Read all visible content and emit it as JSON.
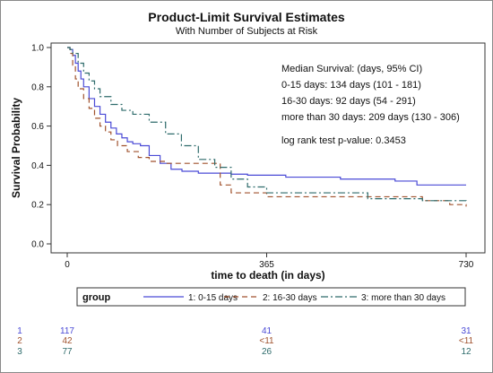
{
  "title": "Product-Limit Survival Estimates",
  "subtitle": "With Number of Subjects at Risk",
  "annotations": [
    "Median Survival: (days, 95% CI)",
    "0-15 days: 134 days (101 - 181)",
    "16-30 days: 92 days (54 - 291)",
    "more than 30 days: 209 days (130 - 306)",
    "log rank test p-value: 0.3453"
  ],
  "legend": {
    "title": "group",
    "items": [
      "1: 0-15 days",
      "2: 16-30 days",
      "3: more than 30 days"
    ]
  },
  "colors": {
    "series1": "#4a4ad6",
    "series2": "#a0522d",
    "series3": "#2e6b6b"
  },
  "chart_data": {
    "type": "line",
    "xlabel": "time to death (in days)",
    "ylabel": "Survival Probability",
    "xlim": [
      0,
      730
    ],
    "ylim": [
      0,
      1.0
    ],
    "xticks": [
      "0",
      "365",
      "730"
    ],
    "yticks": [
      "0.0",
      "0.2",
      "0.4",
      "0.6",
      "0.8",
      "1.0"
    ],
    "series": [
      {
        "name": "1: 0-15 days",
        "style": "solid",
        "x": [
          0,
          5,
          10,
          15,
          20,
          25,
          30,
          40,
          50,
          60,
          70,
          80,
          90,
          100,
          110,
          120,
          134,
          150,
          170,
          190,
          210,
          240,
          270,
          300,
          330,
          365,
          400,
          450,
          500,
          550,
          600,
          640,
          680,
          720,
          730
        ],
        "y": [
          1.0,
          0.99,
          0.96,
          0.92,
          0.88,
          0.84,
          0.8,
          0.74,
          0.7,
          0.66,
          0.62,
          0.59,
          0.56,
          0.54,
          0.52,
          0.51,
          0.5,
          0.45,
          0.41,
          0.38,
          0.37,
          0.36,
          0.36,
          0.355,
          0.35,
          0.35,
          0.34,
          0.34,
          0.33,
          0.33,
          0.32,
          0.3,
          0.3,
          0.3,
          0.3
        ]
      },
      {
        "name": "2: 16-30 days",
        "style": "dash",
        "x": [
          0,
          5,
          10,
          15,
          20,
          30,
          40,
          50,
          60,
          70,
          80,
          92,
          110,
          130,
          150,
          180,
          210,
          250,
          280,
          300,
          330,
          365,
          400,
          450,
          500,
          550,
          600,
          650,
          700,
          730
        ],
        "y": [
          1.0,
          0.97,
          0.91,
          0.84,
          0.79,
          0.74,
          0.69,
          0.64,
          0.6,
          0.57,
          0.53,
          0.5,
          0.47,
          0.44,
          0.42,
          0.41,
          0.41,
          0.41,
          0.3,
          0.26,
          0.26,
          0.24,
          0.24,
          0.24,
          0.24,
          0.24,
          0.24,
          0.22,
          0.2,
          0.19
        ]
      },
      {
        "name": "3: more than 30 days",
        "style": "dashdot",
        "x": [
          0,
          5,
          10,
          20,
          30,
          40,
          50,
          60,
          80,
          100,
          120,
          150,
          180,
          209,
          240,
          270,
          300,
          330,
          365,
          400,
          450,
          500,
          550,
          600,
          650,
          700,
          730
        ],
        "y": [
          1.0,
          0.99,
          0.97,
          0.92,
          0.87,
          0.83,
          0.79,
          0.75,
          0.71,
          0.68,
          0.66,
          0.62,
          0.56,
          0.5,
          0.43,
          0.39,
          0.33,
          0.29,
          0.26,
          0.26,
          0.26,
          0.26,
          0.23,
          0.23,
          0.22,
          0.22,
          0.21
        ]
      }
    ]
  },
  "at_risk": {
    "rows": [
      {
        "label": "1",
        "values": [
          "117",
          "41",
          "31"
        ]
      },
      {
        "label": "2",
        "values": [
          "42",
          "<11",
          "<11"
        ]
      },
      {
        "label": "3",
        "values": [
          "77",
          "26",
          "12"
        ]
      }
    ]
  }
}
